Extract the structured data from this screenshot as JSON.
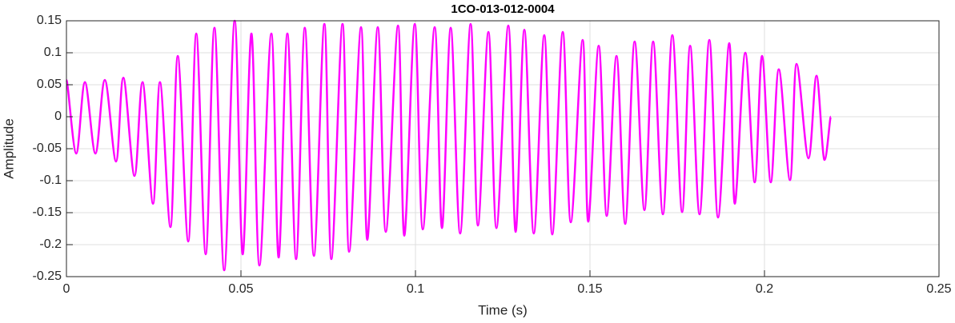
{
  "chart_data": {
    "type": "line",
    "title": "1CO-013-012-0004",
    "x_label": "Time (s)",
    "y_label": "Amplitude",
    "xlim": [
      0,
      0.25
    ],
    "xticks": [
      0,
      0.05,
      0.1,
      0.15,
      0.2,
      0.25
    ],
    "ylim": [
      -0.25,
      0.15
    ],
    "yticks": [
      -0.25,
      -0.2,
      -0.15,
      -0.1,
      -0.05,
      0,
      0.05,
      0.1,
      0.15
    ],
    "grid": true,
    "x": [
      0,
      0.0028,
      0.0053,
      0.0083,
      0.011,
      0.0142,
      0.0163,
      0.0195,
      0.0218,
      0.0248,
      0.0268,
      0.0298,
      0.0319,
      0.0349,
      0.0372,
      0.0399,
      0.0424,
      0.0452,
      0.0482,
      0.0505,
      0.053,
      0.0553,
      0.0587,
      0.0608,
      0.0633,
      0.0658,
      0.0683,
      0.0709,
      0.0739,
      0.0759,
      0.0791,
      0.081,
      0.0844,
      0.0862,
      0.0892,
      0.0915,
      0.095,
      0.0968,
      0.0998,
      0.1021,
      0.1055,
      0.1076,
      0.1101,
      0.1128,
      0.1158,
      0.1179,
      0.1209,
      0.1232,
      0.1266,
      0.1287,
      0.1312,
      0.1339,
      0.1369,
      0.1392,
      0.1422,
      0.1445,
      0.1479,
      0.1495,
      0.1525,
      0.1548,
      0.1576,
      0.1601,
      0.1628,
      0.1656,
      0.1681,
      0.1709,
      0.1736,
      0.1764,
      0.1787,
      0.1814,
      0.1842,
      0.1867,
      0.1899,
      0.1915,
      0.1945,
      0.1972,
      0.1993,
      0.2018,
      0.2041,
      0.2073,
      0.2092,
      0.2126,
      0.2149,
      0.2172,
      0.219
    ],
    "series": [
      {
        "color": "#ff00ff",
        "values": [
          0.0575,
          -0.0575,
          0.054,
          -0.0575,
          0.0575,
          -0.07,
          0.061,
          -0.0925,
          0.054,
          -0.136,
          0.054,
          -0.1725,
          0.095,
          -0.195,
          0.13,
          -0.215,
          0.139,
          -0.24,
          0.15,
          -0.215,
          0.13,
          -0.2325,
          0.13,
          -0.22,
          0.13,
          -0.2225,
          0.139,
          -0.2175,
          0.145,
          -0.2225,
          0.145,
          -0.211,
          0.14,
          -0.1925,
          0.14,
          -0.18,
          0.1425,
          -0.186,
          0.145,
          -0.176,
          0.14,
          -0.174,
          0.139,
          -0.1825,
          0.145,
          -0.17,
          0.1325,
          -0.174,
          0.1425,
          -0.18,
          0.136,
          -0.1825,
          0.1275,
          -0.184,
          0.1325,
          -0.165,
          0.12,
          -0.164,
          0.111,
          -0.155,
          0.095,
          -0.1675,
          0.1175,
          -0.146,
          0.1175,
          -0.1525,
          0.1275,
          -0.149,
          0.111,
          -0.1525,
          0.12,
          -0.1575,
          0.115,
          -0.136,
          0.1,
          -0.1025,
          0.095,
          -0.1025,
          0.074,
          -0.099,
          0.0825,
          -0.065,
          0.064,
          -0.0675,
          0
        ]
      }
    ]
  }
}
